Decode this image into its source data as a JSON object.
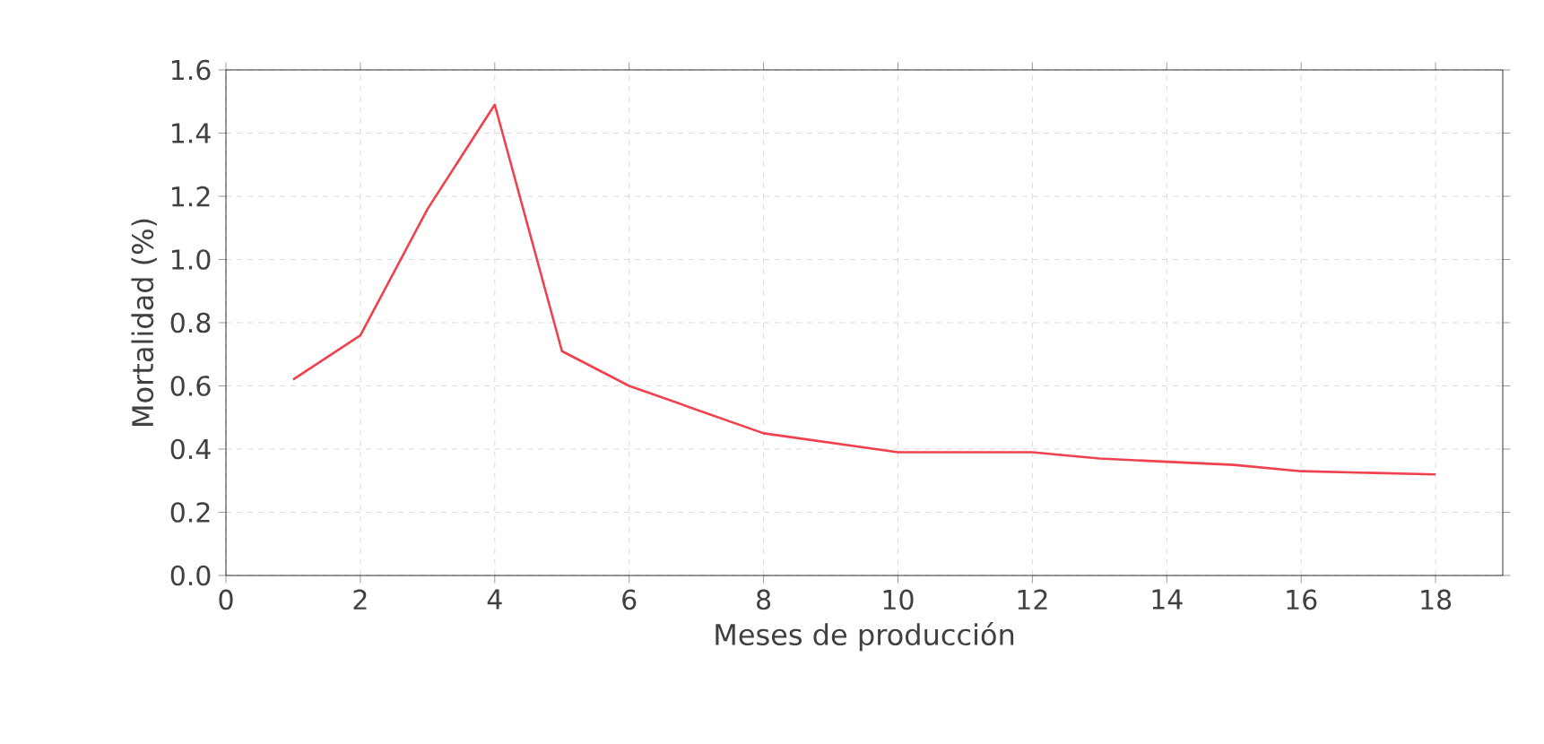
{
  "chart_data": {
    "type": "line",
    "xlabel": "Meses de producción",
    "ylabel": "Mortalidad (%)",
    "x": [
      1,
      2,
      3,
      4,
      5,
      6,
      8,
      10,
      12,
      13,
      14,
      15,
      16,
      18
    ],
    "series": [
      {
        "color": "#f0414f",
        "values": [
          0.62,
          0.76,
          1.16,
          1.49,
          0.71,
          0.6,
          0.45,
          0.39,
          0.39,
          0.37,
          0.36,
          0.35,
          0.33,
          0.32
        ]
      }
    ],
    "xlim": [
      0,
      19
    ],
    "xticks": [
      0,
      2,
      4,
      6,
      8,
      10,
      12,
      14,
      16,
      18
    ],
    "ylim": [
      0,
      1.6
    ],
    "yticks": [
      {
        "value": 0,
        "label": "0.0"
      },
      {
        "value": 0.2,
        "label": "0.2"
      },
      {
        "value": 0.4,
        "label": "0.4"
      },
      {
        "value": 0.6,
        "label": "0.6"
      },
      {
        "value": 0.8,
        "label": "0.8"
      },
      {
        "value": 1,
        "label": "1.0"
      },
      {
        "value": 1.2,
        "label": "1.2"
      },
      {
        "value": 1.4,
        "label": "1.4"
      },
      {
        "value": 1.6,
        "label": "1.6"
      }
    ],
    "grid": true,
    "line_style": "solid",
    "marker": "none"
  }
}
